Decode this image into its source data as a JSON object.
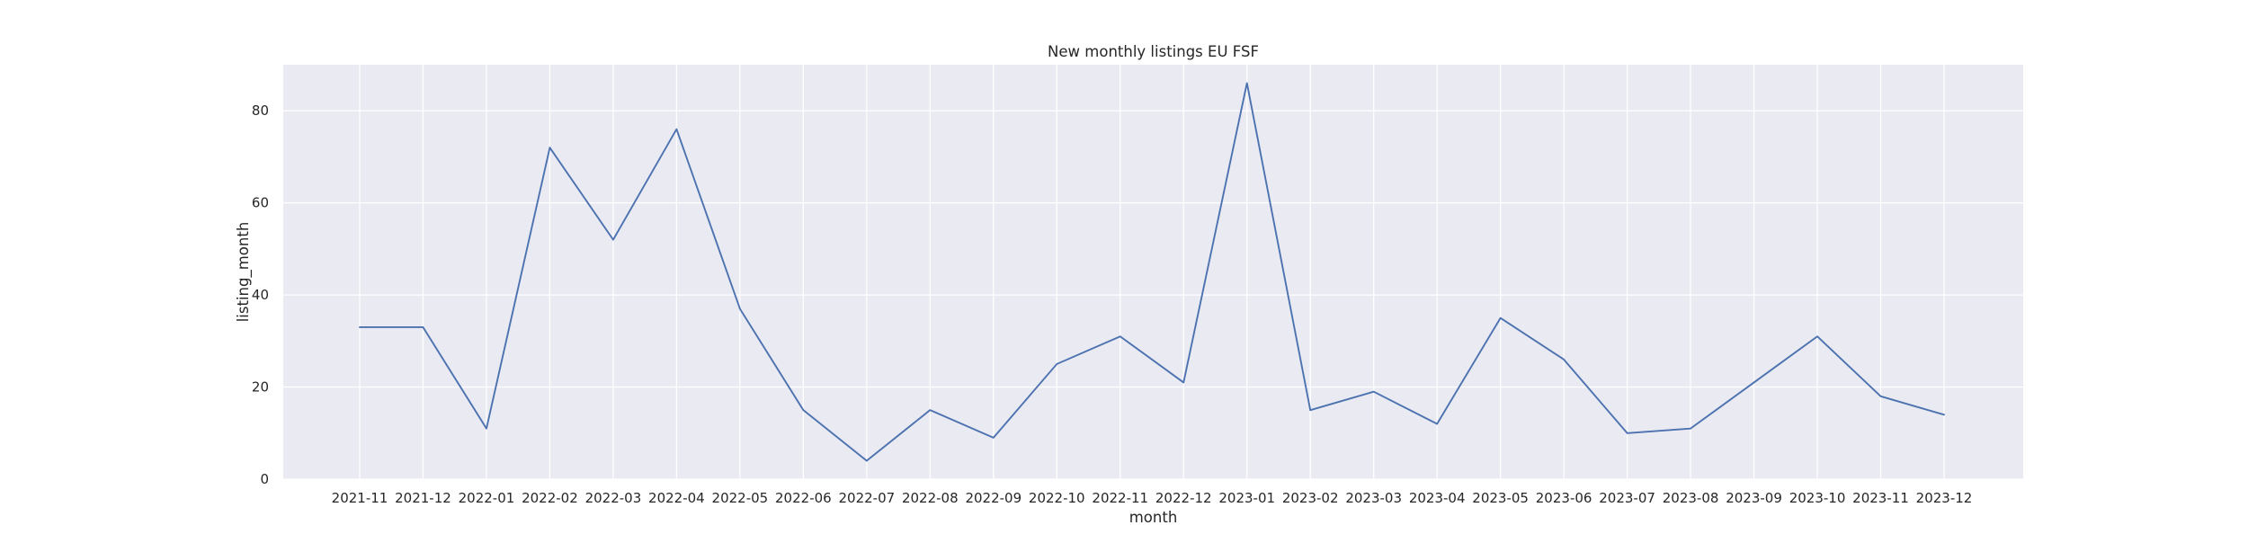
{
  "chart_data": {
    "type": "line",
    "title": "New monthly listings EU FSF",
    "xlabel": "month",
    "ylabel": "listing_month",
    "categories": [
      "2021-11",
      "2021-12",
      "2022-01",
      "2022-02",
      "2022-03",
      "2022-04",
      "2022-05",
      "2022-06",
      "2022-07",
      "2022-08",
      "2022-09",
      "2022-10",
      "2022-11",
      "2022-12",
      "2023-01",
      "2023-02",
      "2023-03",
      "2023-04",
      "2023-05",
      "2023-06",
      "2023-07",
      "2023-08",
      "2023-09",
      "2023-10",
      "2023-11",
      "2023-12"
    ],
    "series": [
      {
        "values": [
          33,
          33,
          11,
          72,
          52,
          76,
          37,
          15,
          4,
          15,
          9,
          25,
          31,
          21,
          86,
          15,
          19,
          12,
          35,
          26,
          10,
          11,
          21,
          31,
          18,
          14
        ]
      }
    ],
    "yticks": [
      0,
      20,
      40,
      60,
      80
    ],
    "ylim": [
      0,
      90
    ],
    "grid": true,
    "colors": {
      "line": "#4c72b0",
      "background": "#eaeaf2",
      "grid": "#ffffff"
    }
  }
}
